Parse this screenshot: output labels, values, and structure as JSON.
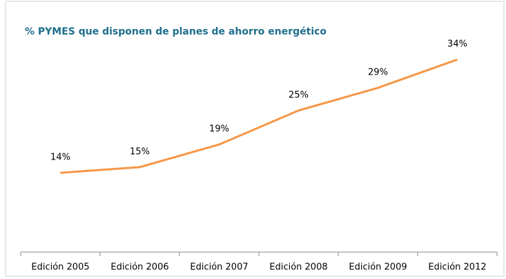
{
  "chart_data": {
    "type": "line",
    "title": "% PYMES que disponen de  planes de ahorro energético",
    "categories": [
      "Edición 2005",
      "Edición 2006",
      "Edición 2007",
      "Edición 2008",
      "Edición 2009",
      "Edición 2012"
    ],
    "series": [
      {
        "name": "% PYMES",
        "color": "#f79646",
        "values": [
          14,
          15,
          19,
          25,
          29,
          34
        ],
        "value_labels": [
          "14%",
          "15%",
          "19%",
          "25%",
          "29%",
          "34%"
        ]
      }
    ],
    "ylim": [
      0,
      40
    ]
  }
}
